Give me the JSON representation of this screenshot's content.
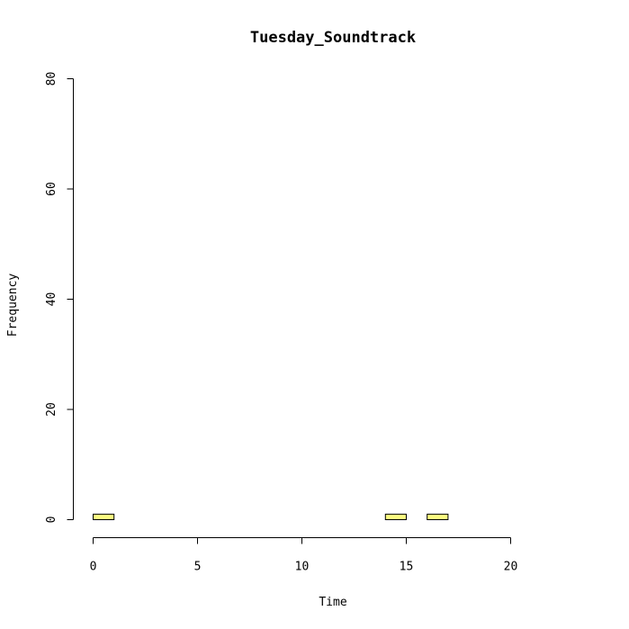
{
  "chart_data": {
    "type": "bar",
    "title": "Tuesday_Soundtrack",
    "xlabel": "Time",
    "ylabel": "Frequency",
    "bin_width": 1,
    "bins": [
      {
        "start": 0,
        "end": 1,
        "count": 1
      },
      {
        "start": 1,
        "end": 2,
        "count": 0
      },
      {
        "start": 2,
        "end": 3,
        "count": 0
      },
      {
        "start": 3,
        "end": 4,
        "count": 0
      },
      {
        "start": 4,
        "end": 5,
        "count": 0
      },
      {
        "start": 5,
        "end": 6,
        "count": 0
      },
      {
        "start": 6,
        "end": 7,
        "count": 0
      },
      {
        "start": 7,
        "end": 8,
        "count": 0
      },
      {
        "start": 8,
        "end": 9,
        "count": 0
      },
      {
        "start": 9,
        "end": 10,
        "count": 0
      },
      {
        "start": 10,
        "end": 11,
        "count": 0
      },
      {
        "start": 11,
        "end": 12,
        "count": 0
      },
      {
        "start": 12,
        "end": 13,
        "count": 0
      },
      {
        "start": 13,
        "end": 14,
        "count": 0
      },
      {
        "start": 14,
        "end": 15,
        "count": 1
      },
      {
        "start": 15,
        "end": 16,
        "count": 0
      },
      {
        "start": 16,
        "end": 17,
        "count": 1
      },
      {
        "start": 17,
        "end": 18,
        "count": 0
      },
      {
        "start": 18,
        "end": 19,
        "count": 0
      },
      {
        "start": 19,
        "end": 20,
        "count": 0
      },
      {
        "start": 20,
        "end": 21,
        "count": 0
      },
      {
        "start": 21,
        "end": 22,
        "count": 0
      },
      {
        "start": 22,
        "end": 23,
        "count": 0
      },
      {
        "start": 23,
        "end": 24,
        "count": 0
      }
    ],
    "xlim": [
      0,
      24
    ],
    "ylim": [
      0,
      80
    ],
    "x_ticks": [
      0,
      5,
      10,
      15,
      20
    ],
    "y_ticks": [
      0,
      20,
      40,
      60,
      80
    ],
    "bar_color": "#ffff80",
    "grid": false,
    "legend": "none"
  }
}
